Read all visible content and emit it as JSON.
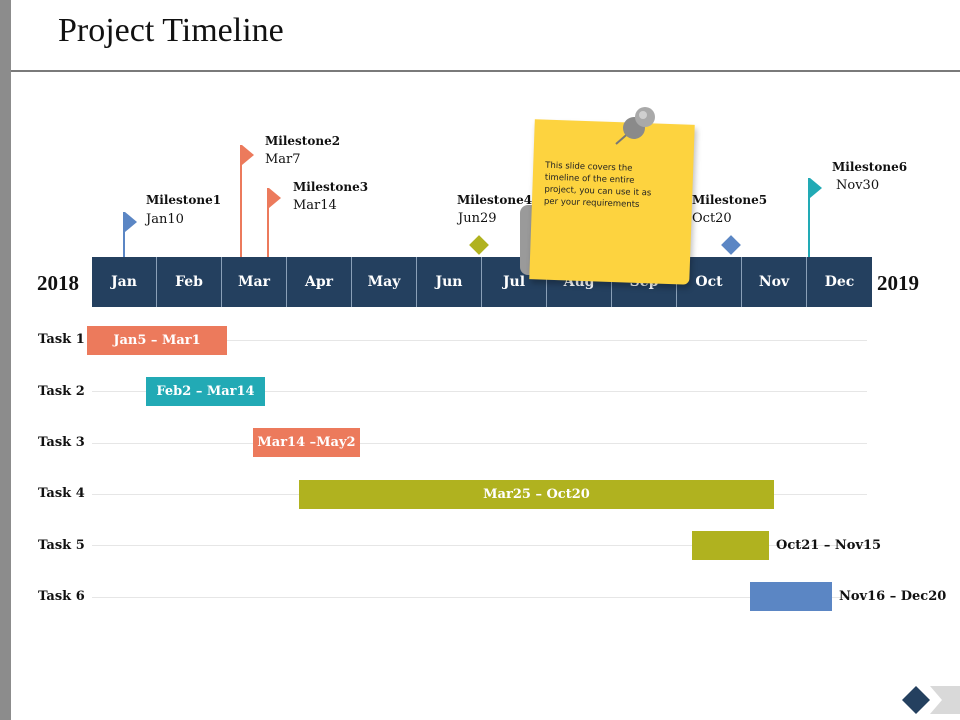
{
  "title": "Project Timeline",
  "years": {
    "start": "2018",
    "end": "2019"
  },
  "months": [
    "Jan",
    "Feb",
    "Mar",
    "Apr",
    "May",
    "Jun",
    "Jul",
    "Aug",
    "Sep",
    "Oct",
    "Nov",
    "Dec"
  ],
  "milestones": [
    {
      "label": "Milestone1",
      "date": "Jan10",
      "color": "#5b86c4",
      "shape": "flag"
    },
    {
      "label": "Milestone2",
      "date": "Mar7",
      "color": "#ec7a5c",
      "shape": "flag"
    },
    {
      "label": "Milestone3",
      "date": "Mar14",
      "color": "#ec7a5c",
      "shape": "flag"
    },
    {
      "label": "Milestone4",
      "date": "Jun29",
      "color": "#b0b21f",
      "shape": "diamond"
    },
    {
      "label": "Milestone5",
      "date": "Oct20",
      "color": "#5b86c4",
      "shape": "diamond"
    },
    {
      "label": "Milestone6",
      "date": "Nov30",
      "color": "#22aab5",
      "shape": "flag"
    }
  ],
  "tasks": [
    {
      "label": "Task 1",
      "range": "Jan5 – Mar1",
      "color": "#ec7a5c"
    },
    {
      "label": "Task 2",
      "range": "Feb2 – Mar14",
      "color": "#22aab5"
    },
    {
      "label": "Task 3",
      "range": "Mar14 –May2",
      "color": "#ec7a5c"
    },
    {
      "label": "Task 4",
      "range": "Mar25 – Oct20",
      "color": "#b0b21f"
    },
    {
      "label": "Task 5",
      "range": "Oct21 – Nov15",
      "color": "#b0b21f"
    },
    {
      "label": "Task 6",
      "range": "Nov16 – Dec20",
      "color": "#5b86c4"
    }
  ],
  "note": "This slide covers the timeline of the entire project, you can use it as per your requirements",
  "colors": {
    "month_bar": "#24405f",
    "sticky": "#fdd33f",
    "nav": "#24405f"
  }
}
